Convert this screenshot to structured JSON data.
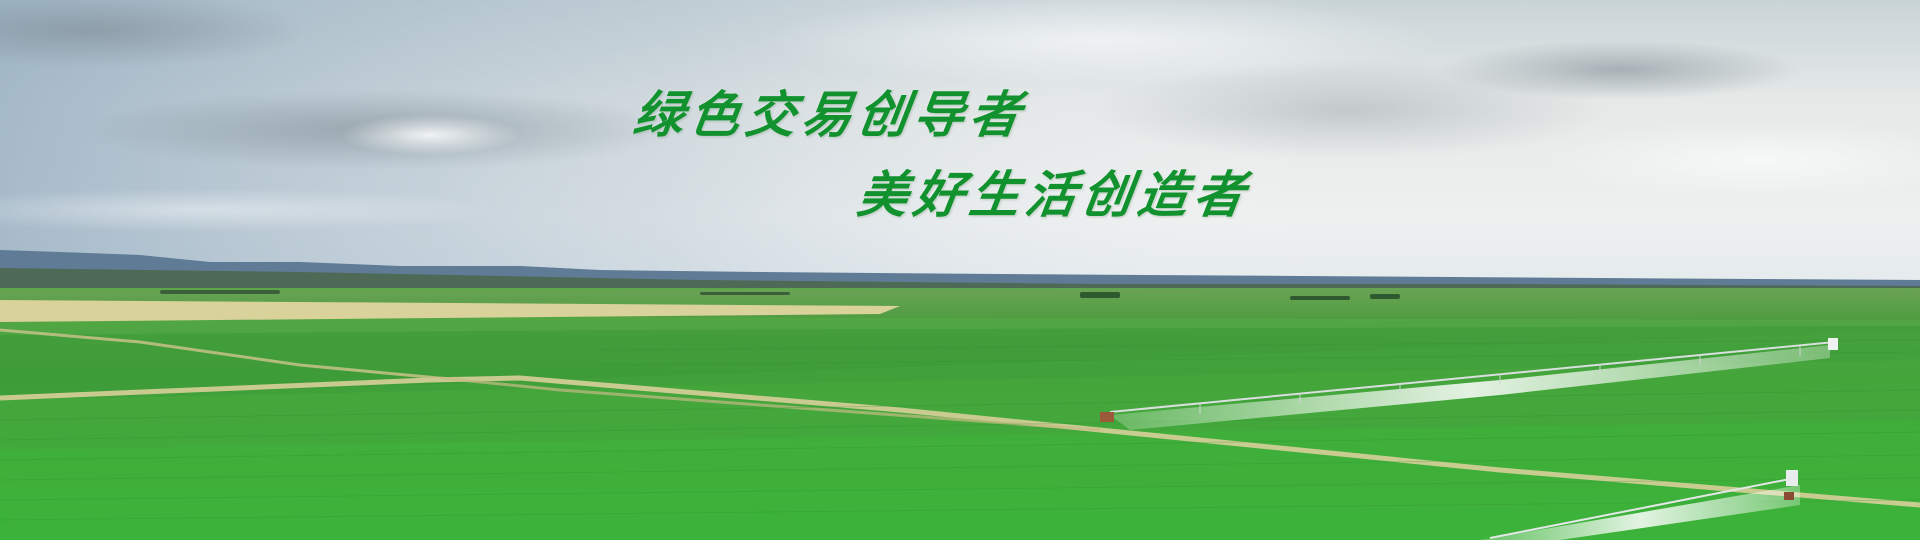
{
  "banner": {
    "slogan_line1": "绿色交易创导者",
    "slogan_line2": "美好生活创造者"
  },
  "colors": {
    "slogan_text": "#12922f",
    "sky": "#e9ecec",
    "field_green": "#3fa43c"
  }
}
